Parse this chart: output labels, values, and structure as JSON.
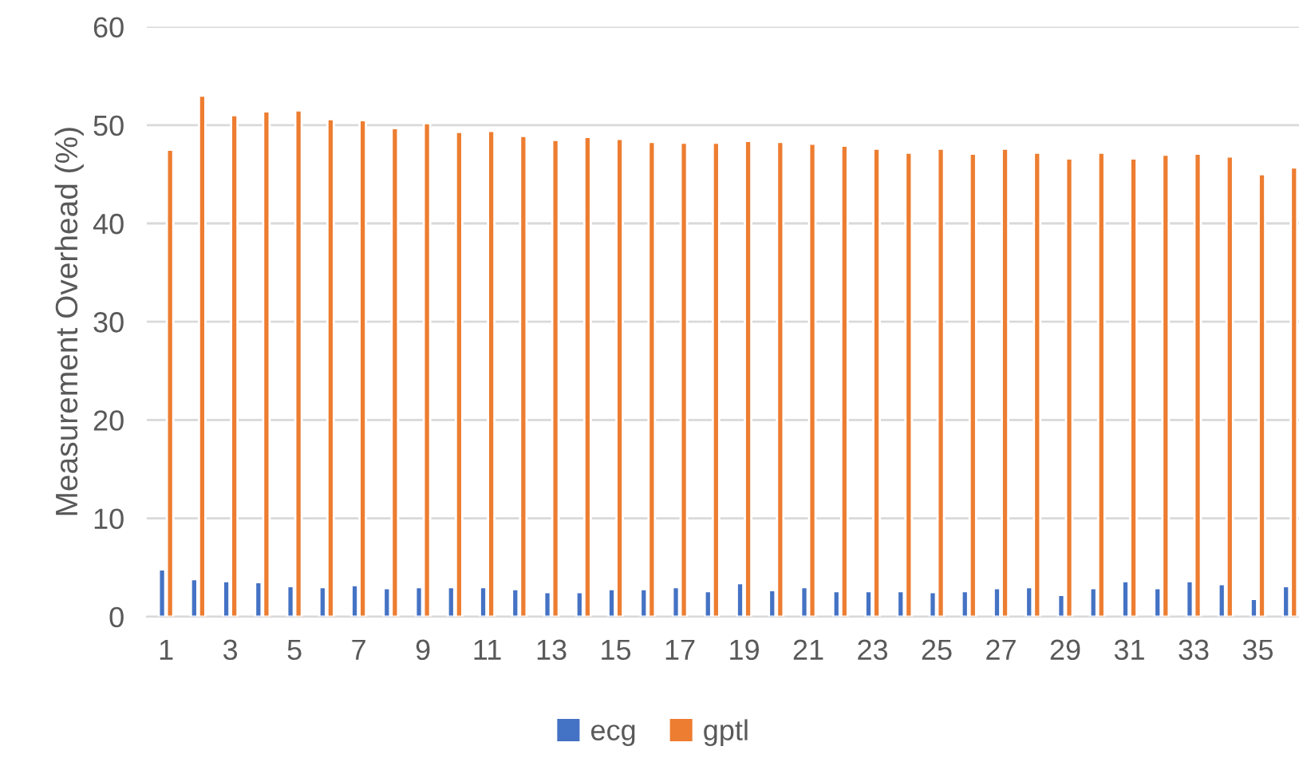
{
  "chart_data": {
    "type": "bar",
    "ylabel": "Measurement Overhead (%)",
    "categories": [
      "1",
      null,
      "3",
      null,
      "5",
      null,
      "7",
      null,
      "9",
      null,
      "11",
      null,
      "13",
      null,
      "15",
      null,
      "17",
      null,
      "19",
      null,
      "21",
      null,
      "23",
      null,
      "25",
      null,
      "27",
      null,
      "29",
      null,
      "31",
      null,
      "33",
      null,
      "35",
      null
    ],
    "series": [
      {
        "name": "ecg",
        "color": "#4472c4",
        "values": [
          4.8,
          3.8,
          3.6,
          3.5,
          3.1,
          3.0,
          3.2,
          2.9,
          3.0,
          3.0,
          3.0,
          2.8,
          2.5,
          2.5,
          2.8,
          2.8,
          3.0,
          2.6,
          3.4,
          2.7,
          3.0,
          2.6,
          2.6,
          2.6,
          2.5,
          2.6,
          2.9,
          3.0,
          2.2,
          2.9,
          3.6,
          2.9,
          3.6,
          3.3,
          1.8,
          3.1
        ]
      },
      {
        "name": "gptl",
        "color": "#ed7d31",
        "values": [
          47.5,
          53.0,
          51.0,
          51.4,
          51.5,
          50.6,
          50.5,
          49.7,
          50.2,
          49.3,
          49.4,
          48.9,
          48.5,
          48.8,
          48.6,
          48.3,
          48.2,
          48.2,
          48.4,
          48.3,
          48.1,
          47.9,
          47.6,
          47.2,
          47.6,
          47.1,
          47.6,
          47.2,
          46.6,
          47.2,
          46.6,
          47.0,
          47.1,
          46.8,
          45.0,
          45.7
        ]
      }
    ],
    "ylim": [
      0,
      60
    ],
    "yticks": [
      0,
      10,
      20,
      30,
      40,
      50,
      60
    ],
    "grid": "y",
    "legend": "bottom"
  }
}
